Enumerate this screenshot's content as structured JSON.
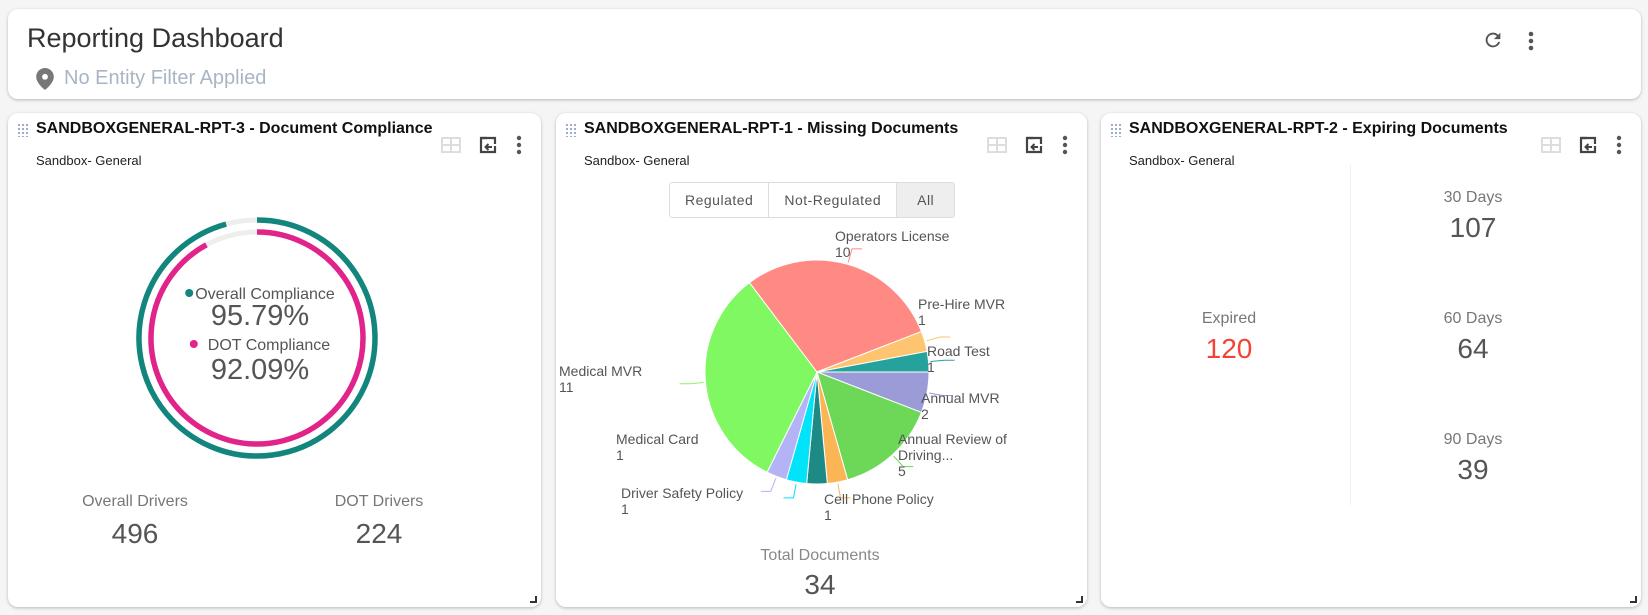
{
  "header": {
    "title": "Reporting Dashboard",
    "filter_text": "No Entity Filter Applied",
    "icons": [
      "map-pin-icon",
      "refresh-icon",
      "more-vert-icon"
    ]
  },
  "panels": [
    {
      "title": "SANDBOXGENERAL-RPT-3 - Document Compliance",
      "subtitle": "Sandbox- General",
      "overall_label": "Overall Compliance",
      "overall_value": "95.79%",
      "overall_fraction": 0.9579,
      "overall_color": "#12857c",
      "dot_label": "DOT Compliance",
      "dot_value": "92.09%",
      "dot_fraction": 0.9209,
      "dot_color": "#e0248a",
      "overall_drivers_label": "Overall Drivers",
      "overall_drivers": "496",
      "dot_drivers_label": "DOT Drivers",
      "dot_drivers": "224"
    },
    {
      "title": "SANDBOXGENERAL-RPT-1 - Missing Documents",
      "subtitle": "Sandbox- General",
      "toggle": [
        "Regulated",
        "Not-Regulated",
        "All"
      ],
      "toggle_selected": "All",
      "total_label": "Total Documents",
      "total_value": "34"
    },
    {
      "title": "SANDBOXGENERAL-RPT-2 - Expiring Documents",
      "subtitle": "Sandbox- General",
      "expired_label": "Expired",
      "expired_value": "120",
      "expired_color": "#f44336",
      "d30_label": "30 Days",
      "d30_value": "107",
      "d60_label": "60 Days",
      "d60_value": "64",
      "d90_label": "90 Days",
      "d90_value": "39"
    }
  ],
  "chart_data": {
    "type": "pie",
    "start": "3 o'clock, clockwise",
    "slices": [
      {
        "label": "Annual MVR",
        "value": 2,
        "color": "#9b9bd8"
      },
      {
        "label": "Annual Review of Driving...",
        "value": 5,
        "color": "#6dd857"
      },
      {
        "label": "Cell Phone Policy",
        "value": 1,
        "color": "#fbb555"
      },
      {
        "label": "",
        "value": 1,
        "color": "#1e8a86"
      },
      {
        "label": "Driver Safety Policy",
        "value": 1,
        "color": "#00e3f8"
      },
      {
        "label": "Medical Card",
        "value": 1,
        "color": "#b3b3f5"
      },
      {
        "label": "Medical MVR",
        "value": 11,
        "color": "#80f861"
      },
      {
        "label": "Operators License",
        "value": 10,
        "color": "#ff8a83"
      },
      {
        "label": "Pre-Hire MVR",
        "value": 1,
        "color": "#fec46f"
      },
      {
        "label": "Road Test",
        "value": 1,
        "color": "#26a29c"
      }
    ]
  }
}
